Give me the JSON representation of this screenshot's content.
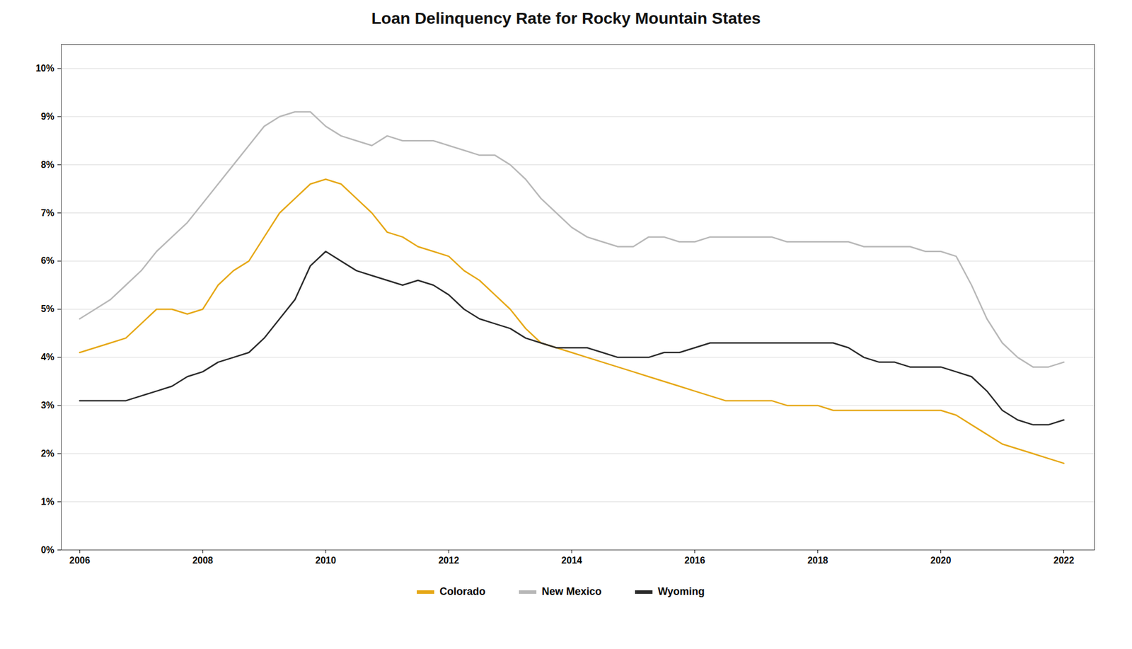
{
  "chart_data": {
    "type": "line",
    "title": "Loan Delinquency Rate for Rocky Mountain States",
    "x": [
      2006.0,
      2006.25,
      2006.5,
      2006.75,
      2007.0,
      2007.25,
      2007.5,
      2007.75,
      2008.0,
      2008.25,
      2008.5,
      2008.75,
      2009.0,
      2009.25,
      2009.5,
      2009.75,
      2010.0,
      2010.25,
      2010.5,
      2010.75,
      2011.0,
      2011.25,
      2011.5,
      2011.75,
      2012.0,
      2012.25,
      2012.5,
      2012.75,
      2013.0,
      2013.25,
      2013.5,
      2013.75,
      2014.0,
      2014.25,
      2014.5,
      2014.75,
      2015.0,
      2015.25,
      2015.5,
      2015.75,
      2016.0,
      2016.25,
      2016.5,
      2016.75,
      2017.0,
      2017.25,
      2017.5,
      2017.75,
      2018.0,
      2018.25,
      2018.5,
      2018.75,
      2019.0,
      2019.25,
      2019.5,
      2019.75,
      2020.0,
      2020.25,
      2020.5,
      2020.75,
      2021.0,
      2021.25,
      2021.5,
      2021.75,
      2022.0
    ],
    "series": [
      {
        "name": "Colorado",
        "color": "#E6A817",
        "values": [
          0.041,
          0.042,
          0.043,
          0.044,
          0.047,
          0.05,
          0.05,
          0.049,
          0.05,
          0.055,
          0.058,
          0.06,
          0.065,
          0.07,
          0.073,
          0.076,
          0.077,
          0.076,
          0.073,
          0.07,
          0.066,
          0.065,
          0.063,
          0.062,
          0.061,
          0.058,
          0.056,
          0.053,
          0.05,
          0.046,
          0.043,
          0.042,
          0.041,
          0.04,
          0.039,
          0.038,
          0.037,
          0.036,
          0.035,
          0.034,
          0.033,
          0.032,
          0.031,
          0.031,
          0.031,
          0.031,
          0.03,
          0.03,
          0.03,
          0.029,
          0.029,
          0.029,
          0.029,
          0.029,
          0.029,
          0.029,
          0.029,
          0.028,
          0.026,
          0.024,
          0.022,
          0.021,
          0.02,
          0.019,
          0.018
        ]
      },
      {
        "name": "New Mexico",
        "color": "#b8b8b8",
        "values": [
          0.048,
          0.05,
          0.052,
          0.055,
          0.058,
          0.062,
          0.065,
          0.068,
          0.072,
          0.076,
          0.08,
          0.084,
          0.088,
          0.09,
          0.091,
          0.091,
          0.088,
          0.086,
          0.085,
          0.084,
          0.086,
          0.085,
          0.085,
          0.085,
          0.084,
          0.083,
          0.082,
          0.082,
          0.08,
          0.077,
          0.073,
          0.07,
          0.067,
          0.065,
          0.064,
          0.063,
          0.063,
          0.065,
          0.065,
          0.064,
          0.064,
          0.065,
          0.065,
          0.065,
          0.065,
          0.065,
          0.064,
          0.064,
          0.064,
          0.064,
          0.064,
          0.063,
          0.063,
          0.063,
          0.063,
          0.062,
          0.062,
          0.061,
          0.055,
          0.048,
          0.043,
          0.04,
          0.038,
          0.038,
          0.039
        ]
      },
      {
        "name": "Wyoming",
        "color": "#2b2b2b",
        "values": [
          0.031,
          0.031,
          0.031,
          0.031,
          0.032,
          0.033,
          0.034,
          0.036,
          0.037,
          0.039,
          0.04,
          0.041,
          0.044,
          0.048,
          0.052,
          0.059,
          0.062,
          0.06,
          0.058,
          0.057,
          0.056,
          0.055,
          0.056,
          0.055,
          0.053,
          0.05,
          0.048,
          0.047,
          0.046,
          0.044,
          0.043,
          0.042,
          0.042,
          0.042,
          0.041,
          0.04,
          0.04,
          0.04,
          0.041,
          0.041,
          0.042,
          0.043,
          0.043,
          0.043,
          0.043,
          0.043,
          0.043,
          0.043,
          0.043,
          0.043,
          0.042,
          0.04,
          0.039,
          0.039,
          0.038,
          0.038,
          0.038,
          0.037,
          0.036,
          0.033,
          0.029,
          0.027,
          0.026,
          0.026,
          0.027
        ]
      }
    ],
    "xlim": [
      2005.7,
      2022.5
    ],
    "xticks": [
      2006,
      2008,
      2010,
      2012,
      2014,
      2016,
      2018,
      2020,
      2022
    ],
    "ylim": [
      0,
      0.105
    ],
    "yticks": [
      {
        "value": 0,
        "label": "0%"
      },
      {
        "value": 0.01,
        "label": "1%"
      },
      {
        "value": 0.02,
        "label": "2%"
      },
      {
        "value": 0.03,
        "label": "3%"
      },
      {
        "value": 0.04,
        "label": "4%"
      },
      {
        "value": 0.05,
        "label": "5%"
      },
      {
        "value": 0.06,
        "label": "6%"
      },
      {
        "value": 0.07,
        "label": "7%"
      },
      {
        "value": 0.08,
        "label": "8%"
      },
      {
        "value": 0.09,
        "label": "9%"
      },
      {
        "value": 0.1,
        "label": "10%"
      }
    ],
    "grid": true,
    "legend": "bottom"
  }
}
